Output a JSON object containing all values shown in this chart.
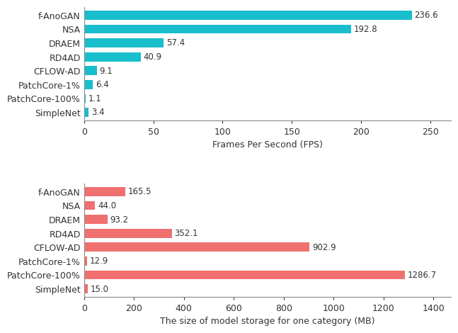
{
  "top_chart": {
    "categories": [
      "f-AnoGAN",
      "NSA",
      "DRAEM",
      "RD4AD",
      "CFLOW-AD",
      "PatchCore-1%",
      "PatchCore-100%",
      "SimpleNet"
    ],
    "values": [
      236.6,
      192.8,
      57.4,
      40.9,
      9.1,
      6.4,
      1.1,
      3.4
    ],
    "bar_color": "#19BECC",
    "xlabel": "Frames Per Second (FPS)",
    "xlim": [
      0,
      265
    ],
    "xticks": [
      0,
      50,
      100,
      150,
      200,
      250
    ]
  },
  "bottom_chart": {
    "categories": [
      "f-AnoGAN",
      "NSA",
      "DRAEM",
      "RD4AD",
      "CFLOW-AD",
      "PatchCore-1%",
      "PatchCore-100%",
      "SimpleNet"
    ],
    "values": [
      165.5,
      44.0,
      93.2,
      352.1,
      902.9,
      12.9,
      1286.7,
      15.0
    ],
    "bar_color": "#F07070",
    "xlabel": "The size of model storage for one category (MB)",
    "xlim": [
      0,
      1470
    ],
    "xticks": [
      0,
      200,
      400,
      600,
      800,
      1000,
      1200,
      1400
    ]
  },
  "background_color": "#ffffff",
  "tick_color": "#333333",
  "label_fontsize": 9,
  "value_fontsize": 8.5,
  "bar_height": 0.65,
  "spine_color": "#888888"
}
